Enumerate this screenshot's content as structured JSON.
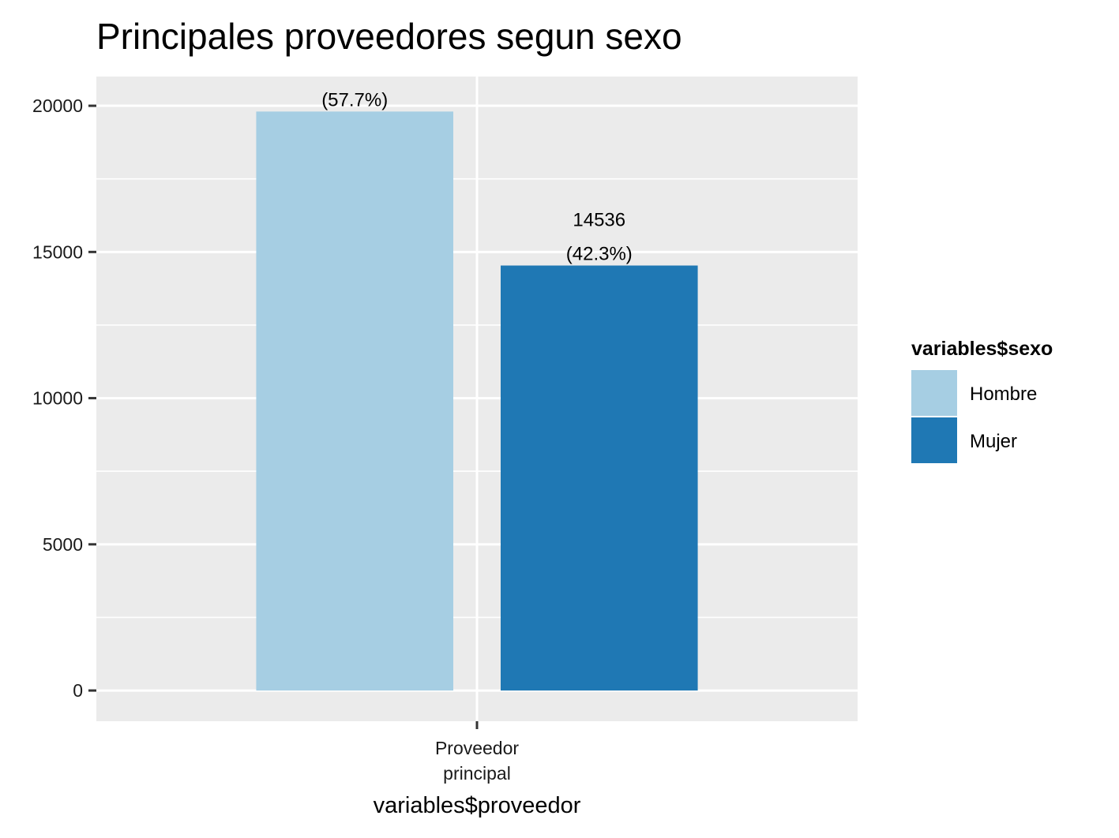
{
  "chart_data": {
    "type": "bar",
    "title": "Principales proveedores segun sexo",
    "xlabel": "variables$proveedor",
    "ylabel": "",
    "categories": [
      "Proveedor\nprincipal"
    ],
    "series": [
      {
        "name": "Hombre",
        "color": "#a6cee3",
        "values": [
          19803
        ],
        "value_label": "",
        "pct_label": "(57.7%)"
      },
      {
        "name": "Mujer",
        "color": "#1f78b4",
        "values": [
          14536
        ],
        "value_label": "14536",
        "pct_label": "(42.3%)"
      }
    ],
    "ylim": [
      -1050,
      21000
    ],
    "yticks": [
      0,
      5000,
      10000,
      15000,
      20000
    ],
    "yticks_minor": [
      2500,
      7500,
      12500,
      17500
    ],
    "grid": true,
    "legend": {
      "title": "variables$sexo",
      "position": "right"
    },
    "colors": {
      "panel": "#ebebeb",
      "grid": "#ffffff",
      "tick": "#333333"
    }
  }
}
